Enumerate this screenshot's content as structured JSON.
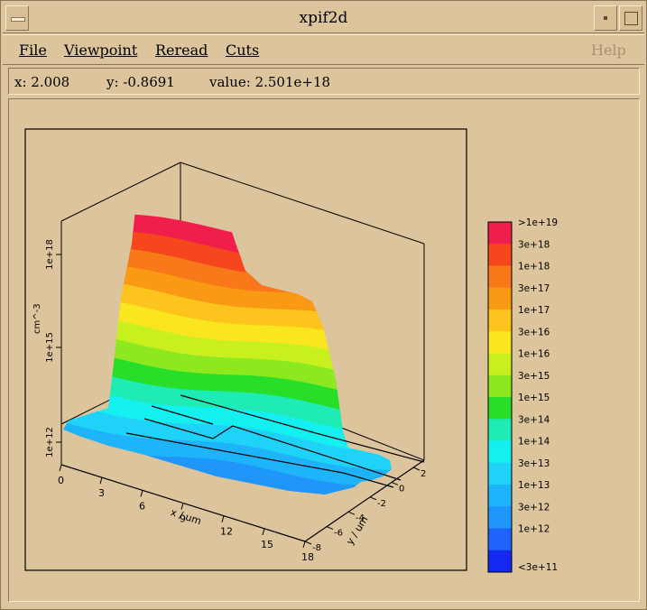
{
  "window": {
    "title": "xpif2d"
  },
  "menu": {
    "file": "File",
    "viewpoint": "Viewpoint",
    "reread": "Reread",
    "cuts": "Cuts",
    "help": "Help"
  },
  "status": {
    "x": "x: 2.008",
    "y": "y: -0.8691",
    "value": "value: 2.501e+18"
  },
  "plot": {
    "x_axis_label": "x / um",
    "y_axis_label": "y / um",
    "z_axis_label": "cm^-3",
    "x_ticks": [
      "0",
      "3",
      "6",
      "9",
      "12",
      "15",
      "18"
    ],
    "y_ticks": [
      "-8",
      "-6",
      "-4",
      "-2",
      "0",
      "2"
    ],
    "z_ticks": [
      "1e+12",
      "1e+15",
      "1e+18"
    ]
  },
  "colorbar": {
    "labels": [
      ">1e+19",
      "3e+18",
      "1e+18",
      "3e+17",
      "1e+17",
      "3e+16",
      "1e+16",
      "3e+15",
      "1e+15",
      "3e+14",
      "1e+14",
      "3e+13",
      "1e+13",
      "3e+12",
      "1e+12",
      "<3e+11"
    ],
    "colors": [
      "#f01e4b",
      "#f5461e",
      "#f8781a",
      "#fa9a14",
      "#fcc41c",
      "#fae61e",
      "#c8f01e",
      "#8ee81e",
      "#28de28",
      "#1eecb4",
      "#14f0f0",
      "#1ed2f8",
      "#1eb4fa",
      "#1e96fa",
      "#1e64fa",
      "#1428f0"
    ]
  }
}
